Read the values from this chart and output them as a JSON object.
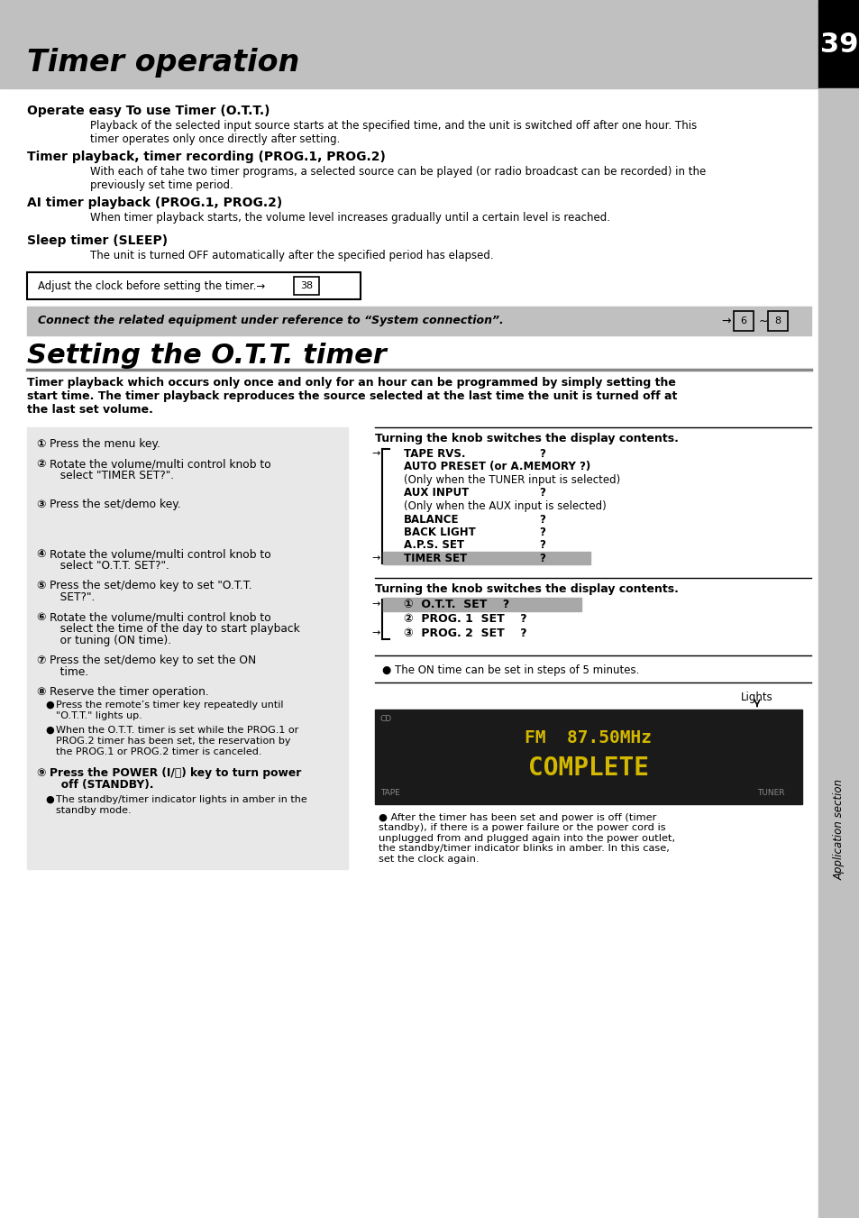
{
  "page_bg": "#ffffff",
  "header_bg": "#c0c0c0",
  "header_title": "Timer operation",
  "header_page_num": "39",
  "sidebar_bg": "#c0c0c0",
  "sidebar_text": "Application section",
  "section1_title": "Operate easy To use Timer (O.T.T.)",
  "section1_body": "Playback of the selected input source starts at the specified time, and the unit is switched off after one hour. This\ntimer operates only once directly after setting.",
  "section2_title": "Timer playback, timer recording (PROG.1, PROG.2)",
  "section2_body": "With each of tahe two timer programs, a selected source can be played (or radio broadcast can be recorded) in the\npreviously set time period.",
  "section3_title": "AI timer playback (PROG.1, PROG.2)",
  "section3_body": "When timer playback starts, the volume level increases gradually until a certain level is reached.",
  "section4_title": "Sleep timer (SLEEP)",
  "section4_body": "The unit is turned OFF automatically after the specified period has elapsed.",
  "note_box_text": "Adjust the clock before setting the timer.→",
  "note_box_ref": "38",
  "grey_banner_text": "Connect the related equipment under reference to “System connection”.",
  "section_title2": "Setting the O.T.T. timer",
  "intro_text": "Timer playback which occurs only once and only for an hour can be programmed by simply setting the\nstart time. The timer playback reproduces the source selected at the last time the unit is turned off at\nthe last set volume.",
  "right_panel1_title": "Turning the knob switches the display contents.",
  "right_panel2_title": "Turning the knob switches the display contents.",
  "on_time_note": "The ON time can be set in steps of 5 minutes.",
  "display_freq": "FM  87.50MHz",
  "display_word": "COMPLETE",
  "lights_label": "Lights",
  "display_bg": "#1a1a1a",
  "display_text_color": "#d4b800",
  "final_note": "After the timer has been set and power is off (timer\nstandby), if there is a power failure or the power cord is\nunplugged from and plugged again into the power outlet,\nthe standby/timer indicator blinks in amber. In this case,\nset the clock again."
}
